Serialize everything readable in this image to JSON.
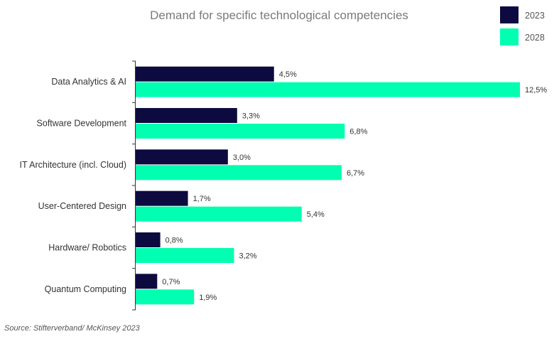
{
  "chart_data": {
    "type": "bar",
    "orientation": "horizontal",
    "title": "Demand for specific technological competencies",
    "categories": [
      "Data Analytics & AI",
      "Software Development",
      "IT Architecture (incl. Cloud)",
      "User-Centered Design",
      "Hardware/ Robotics",
      "Quantum Computing"
    ],
    "series": [
      {
        "name": "2023",
        "color": "#0d0a40",
        "values": [
          4.5,
          3.3,
          3.0,
          1.7,
          0.8,
          0.7
        ],
        "labels": [
          "4,5%",
          "3,3%",
          "3,0%",
          "1,7%",
          "0,8%",
          "0,7%"
        ]
      },
      {
        "name": "2028",
        "color": "#00ffb0",
        "values": [
          12.5,
          6.8,
          6.7,
          5.4,
          3.2,
          1.9
        ],
        "labels": [
          "12,5%",
          "6,8%",
          "6,7%",
          "5,4%",
          "3,2%",
          "1,9%"
        ]
      }
    ],
    "xlim": [
      0,
      12.5
    ],
    "grid": false,
    "legend_position": "top-right",
    "source": "Source: Stifterverband/ McKinsey 2023"
  }
}
